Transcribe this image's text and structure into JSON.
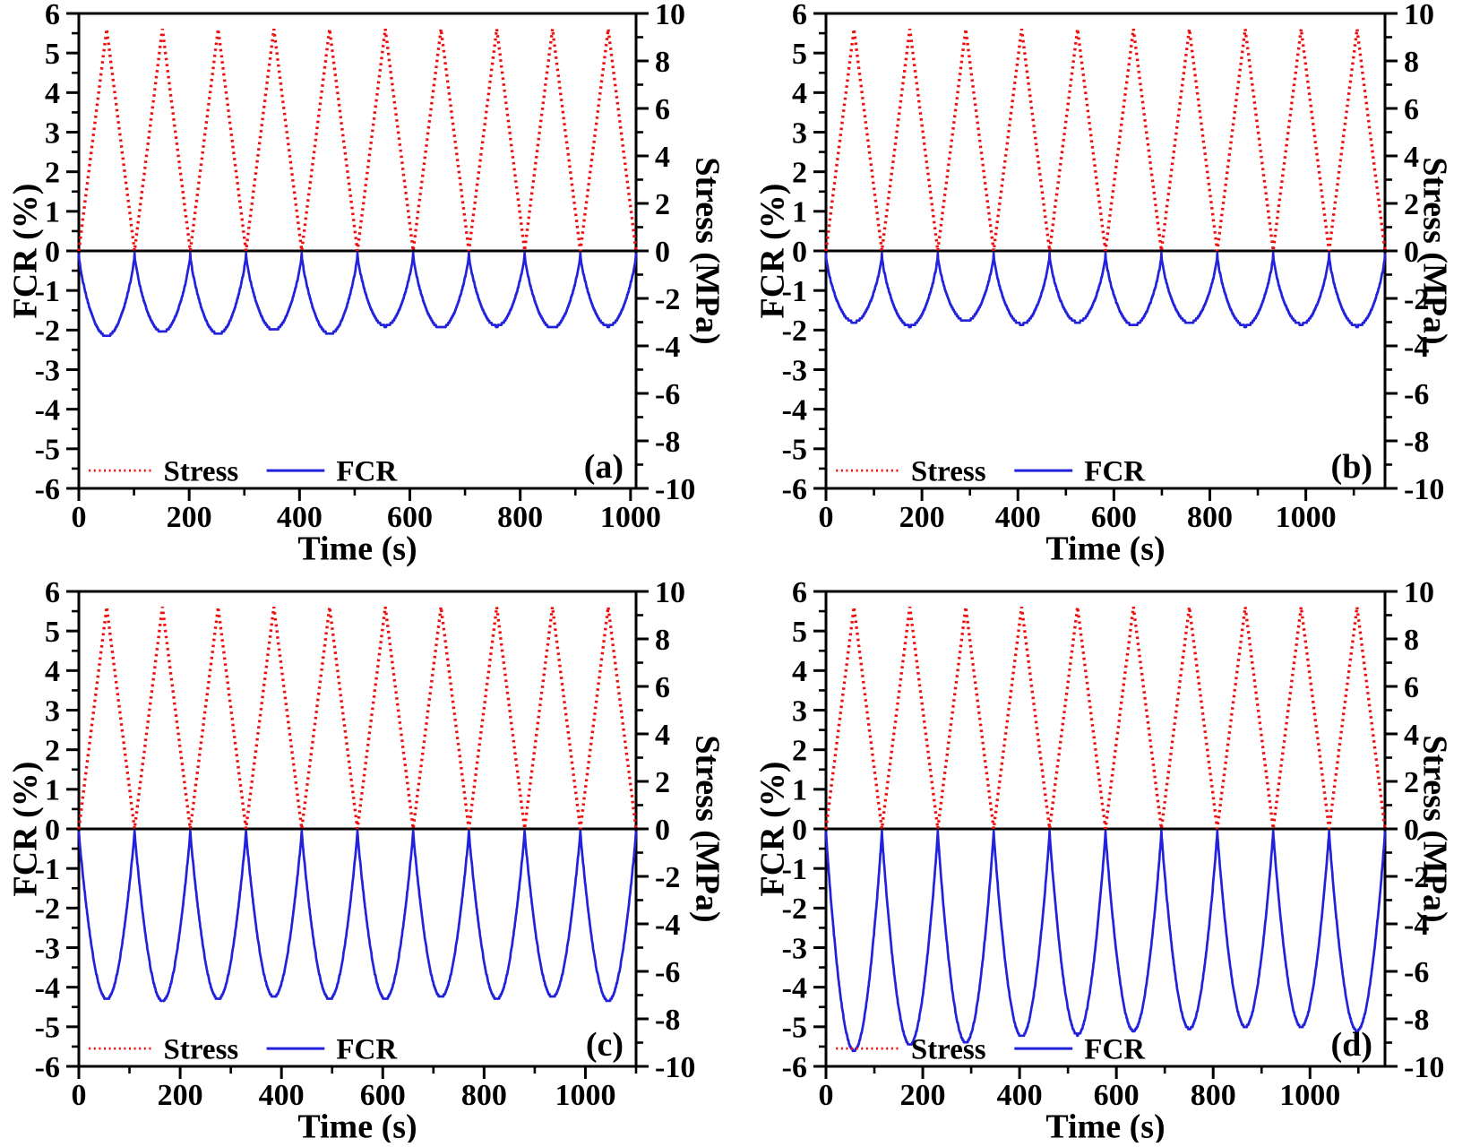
{
  "figure": {
    "background": "#ffffff",
    "axis_color": "#000000",
    "xlabel": "Time (s)",
    "ylabel_left": "FCR (%)",
    "ylabel_right": "Stress (MPa)",
    "legend": {
      "stress_label": "Stress",
      "fcr_label": "FCR"
    },
    "colors": {
      "stress": "#f20d0d",
      "fcr": "#2222dd"
    }
  },
  "chart_data": [
    {
      "type": "line",
      "panel_label": "(a)",
      "xlabel": "Time (s)",
      "ylabel_left": "FCR (%)",
      "ylabel_right": "Stress (MPa)",
      "x_range": [
        0,
        1010
      ],
      "x_major_ticks": [
        0,
        200,
        400,
        600,
        800,
        1000
      ],
      "x_minor_step": 100,
      "y_left_range": [
        -6,
        6
      ],
      "y_left_major_step": 1,
      "y_left_minor_step": 0.5,
      "y_right_range": [
        -10,
        10
      ],
      "y_right_major_step": 2,
      "y_right_minor_step": 1,
      "grid": false,
      "legend_position": "bottom-inside",
      "series": [
        {
          "name": "Stress",
          "axis": "right",
          "units": "MPa",
          "color": "#f20d0d",
          "line_style": "dotted",
          "waveform": "triangle",
          "cycles": 10,
          "peak": 9.35,
          "min": 0
        },
        {
          "name": "FCR",
          "axis": "left",
          "units": "%",
          "color": "#2222dd",
          "line_style": "solid",
          "waveform": "cusped_dip",
          "cycles": 10,
          "peak": -0.08,
          "shape_exponent": 0.75,
          "troughs": [
            -2.15,
            -2.05,
            -2.1,
            -2.0,
            -2.1,
            -1.9,
            -1.95,
            -1.9,
            -1.95,
            -1.9
          ]
        }
      ]
    },
    {
      "type": "line",
      "panel_label": "(b)",
      "xlabel": "Time (s)",
      "ylabel_left": "FCR (%)",
      "ylabel_right": "Stress (MPa)",
      "x_range": [
        0,
        1165
      ],
      "x_major_ticks": [
        0,
        200,
        400,
        600,
        800,
        1000
      ],
      "x_minor_step": 100,
      "y_left_range": [
        -6,
        6
      ],
      "y_left_major_step": 1,
      "y_left_minor_step": 0.5,
      "y_right_range": [
        -10,
        10
      ],
      "y_right_major_step": 2,
      "y_right_minor_step": 1,
      "grid": false,
      "legend_position": "bottom-inside",
      "series": [
        {
          "name": "Stress",
          "axis": "right",
          "units": "MPa",
          "color": "#f20d0d",
          "line_style": "dotted",
          "waveform": "triangle",
          "cycles": 10,
          "peak": 9.35,
          "min": 0
        },
        {
          "name": "FCR",
          "axis": "left",
          "units": "%",
          "color": "#2222dd",
          "line_style": "solid",
          "waveform": "cusped_dip",
          "cycles": 10,
          "peak": -0.08,
          "shape_exponent": 0.7,
          "troughs": [
            -1.8,
            -1.9,
            -1.78,
            -1.85,
            -1.8,
            -1.88,
            -1.82,
            -1.9,
            -1.85,
            -1.9
          ]
        }
      ]
    },
    {
      "type": "line",
      "panel_label": "(c)",
      "xlabel": "Time (s)",
      "ylabel_left": "FCR (%)",
      "ylabel_right": "Stress (MPa)",
      "x_range": [
        0,
        1100
      ],
      "x_major_ticks": [
        0,
        200,
        400,
        600,
        800,
        1000
      ],
      "x_minor_step": 100,
      "y_left_range": [
        -6,
        6
      ],
      "y_left_major_step": 1,
      "y_left_minor_step": 0.5,
      "y_right_range": [
        -10,
        10
      ],
      "y_right_major_step": 2,
      "y_right_minor_step": 1,
      "grid": false,
      "legend_position": "bottom-inside",
      "series": [
        {
          "name": "Stress",
          "axis": "right",
          "units": "MPa",
          "color": "#f20d0d",
          "line_style": "dotted",
          "waveform": "triangle",
          "cycles": 10,
          "peak": 9.35,
          "min": 0
        },
        {
          "name": "FCR",
          "axis": "left",
          "units": "%",
          "color": "#2222dd",
          "line_style": "solid",
          "waveform": "cusped_dip",
          "cycles": 10,
          "peak": -0.05,
          "shape_exponent": 0.9,
          "troughs": [
            -4.3,
            -4.35,
            -4.3,
            -4.25,
            -4.3,
            -4.3,
            -4.25,
            -4.3,
            -4.25,
            -4.35
          ]
        }
      ]
    },
    {
      "type": "line",
      "panel_label": "(d)",
      "xlabel": "Time (s)",
      "ylabel_left": "FCR (%)",
      "ylabel_right": "Stress (MPa)",
      "x_range": [
        0,
        1155
      ],
      "x_major_ticks": [
        0,
        200,
        400,
        600,
        800,
        1000
      ],
      "x_minor_step": 100,
      "y_left_range": [
        -6,
        6
      ],
      "y_left_major_step": 1,
      "y_left_minor_step": 0.5,
      "y_right_range": [
        -10,
        10
      ],
      "y_right_major_step": 2,
      "y_right_minor_step": 1,
      "grid": false,
      "legend_position": "bottom-inside",
      "series": [
        {
          "name": "Stress",
          "axis": "right",
          "units": "MPa",
          "color": "#f20d0d",
          "line_style": "dotted",
          "waveform": "triangle",
          "cycles": 10,
          "peak": 9.35,
          "min": 0
        },
        {
          "name": "FCR",
          "axis": "left",
          "units": "%",
          "color": "#2222dd",
          "line_style": "solid",
          "waveform": "cusped_dip",
          "cycles": 10,
          "peak": -0.05,
          "shape_exponent": 0.9,
          "troughs": [
            -5.6,
            -5.45,
            -5.4,
            -5.25,
            -5.2,
            -5.1,
            -5.05,
            -5.0,
            -5.0,
            -5.1
          ]
        }
      ]
    }
  ]
}
